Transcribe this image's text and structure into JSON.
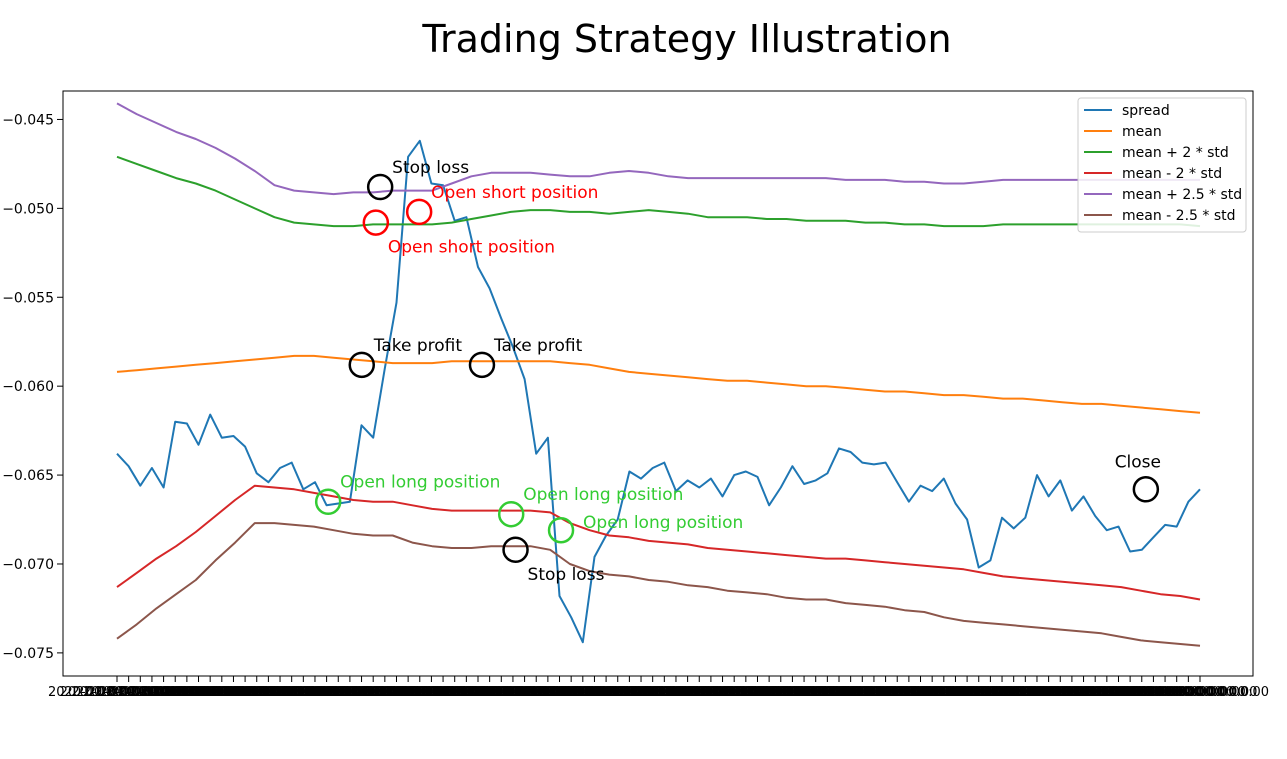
{
  "chart_data": {
    "type": "line",
    "title": "Trading Strategy Illustration",
    "xlabel": "",
    "ylabel": "",
    "ylim": [
      -0.0763,
      -0.0434
    ],
    "y_ticks": [
      -0.045,
      -0.05,
      -0.055,
      -0.06,
      -0.065,
      -0.07,
      -0.075
    ],
    "x_tick_label": "2020-00-00 00:00:00",
    "legend_position": "top-right",
    "grid": false,
    "series": [
      {
        "name": "spread",
        "color": "#1f77b4",
        "values": [
          -0.0638,
          -0.0645,
          -0.0656,
          -0.0646,
          -0.0657,
          -0.062,
          -0.0621,
          -0.0633,
          -0.0616,
          -0.0629,
          -0.0628,
          -0.0634,
          -0.0649,
          -0.0654,
          -0.0646,
          -0.0643,
          -0.0658,
          -0.0654,
          -0.0667,
          -0.0666,
          -0.0665,
          -0.0622,
          -0.0629,
          -0.059,
          -0.0553,
          -0.0471,
          -0.0462,
          -0.0486,
          -0.0487,
          -0.0507,
          -0.0505,
          -0.0533,
          -0.0545,
          -0.0562,
          -0.0578,
          -0.0596,
          -0.0638,
          -0.0629,
          -0.0718,
          -0.073,
          -0.0744,
          -0.0696,
          -0.0684,
          -0.0675,
          -0.0648,
          -0.0652,
          -0.0646,
          -0.0643,
          -0.0659,
          -0.0653,
          -0.0657,
          -0.0652,
          -0.0662,
          -0.065,
          -0.0648,
          -0.0651,
          -0.0667,
          -0.0657,
          -0.0645,
          -0.0655,
          -0.0653,
          -0.0649,
          -0.0635,
          -0.0637,
          -0.0643,
          -0.0644,
          -0.0643,
          -0.0654,
          -0.0665,
          -0.0656,
          -0.0659,
          -0.0652,
          -0.0666,
          -0.0675,
          -0.0702,
          -0.0698,
          -0.0674,
          -0.068,
          -0.0674,
          -0.065,
          -0.0662,
          -0.0653,
          -0.067,
          -0.0662,
          -0.0673,
          -0.0681,
          -0.0679,
          -0.0693,
          -0.0692,
          -0.0685,
          -0.0678,
          -0.0679,
          -0.0665,
          -0.0658
        ]
      },
      {
        "name": "mean",
        "color": "#ff7f0e",
        "values": [
          -0.0592,
          -0.0591,
          -0.059,
          -0.0589,
          -0.0588,
          -0.0587,
          -0.0586,
          -0.0585,
          -0.0584,
          -0.0583,
          -0.0583,
          -0.0584,
          -0.0585,
          -0.0586,
          -0.0587,
          -0.0587,
          -0.0587,
          -0.0586,
          -0.0586,
          -0.0586,
          -0.0586,
          -0.0586,
          -0.0586,
          -0.0587,
          -0.0588,
          -0.059,
          -0.0592,
          -0.0593,
          -0.0594,
          -0.0595,
          -0.0596,
          -0.0597,
          -0.0597,
          -0.0598,
          -0.0599,
          -0.06,
          -0.06,
          -0.0601,
          -0.0602,
          -0.0603,
          -0.0603,
          -0.0604,
          -0.0605,
          -0.0605,
          -0.0606,
          -0.0607,
          -0.0607,
          -0.0608,
          -0.0609,
          -0.061,
          -0.061,
          -0.0611,
          -0.0612,
          -0.0613,
          -0.0614,
          -0.0615
        ]
      },
      {
        "name": "mean + 2 * std",
        "color": "#2ca02c",
        "values": [
          -0.0471,
          -0.0475,
          -0.0479,
          -0.0483,
          -0.0486,
          -0.049,
          -0.0495,
          -0.05,
          -0.0505,
          -0.0508,
          -0.0509,
          -0.051,
          -0.051,
          -0.0509,
          -0.0509,
          -0.0509,
          -0.0509,
          -0.0508,
          -0.0506,
          -0.0504,
          -0.0502,
          -0.0501,
          -0.0501,
          -0.0502,
          -0.0502,
          -0.0503,
          -0.0502,
          -0.0501,
          -0.0502,
          -0.0503,
          -0.0505,
          -0.0505,
          -0.0505,
          -0.0506,
          -0.0506,
          -0.0507,
          -0.0507,
          -0.0507,
          -0.0508,
          -0.0508,
          -0.0509,
          -0.0509,
          -0.051,
          -0.051,
          -0.051,
          -0.0509,
          -0.0509,
          -0.0509,
          -0.0509,
          -0.0509,
          -0.0509,
          -0.0509,
          -0.0509,
          -0.0509,
          -0.0509,
          -0.051
        ]
      },
      {
        "name": "mean - 2 * std",
        "color": "#d62728",
        "values": [
          -0.0713,
          -0.0705,
          -0.0697,
          -0.069,
          -0.0682,
          -0.0673,
          -0.0664,
          -0.0656,
          -0.0657,
          -0.0658,
          -0.066,
          -0.0662,
          -0.0664,
          -0.0665,
          -0.0665,
          -0.0667,
          -0.0669,
          -0.067,
          -0.067,
          -0.067,
          -0.067,
          -0.067,
          -0.0671,
          -0.0677,
          -0.0681,
          -0.0684,
          -0.0685,
          -0.0687,
          -0.0688,
          -0.0689,
          -0.0691,
          -0.0692,
          -0.0693,
          -0.0694,
          -0.0695,
          -0.0696,
          -0.0697,
          -0.0697,
          -0.0698,
          -0.0699,
          -0.07,
          -0.0701,
          -0.0702,
          -0.0703,
          -0.0705,
          -0.0707,
          -0.0708,
          -0.0709,
          -0.071,
          -0.0711,
          -0.0712,
          -0.0713,
          -0.0715,
          -0.0717,
          -0.0718,
          -0.072
        ]
      },
      {
        "name": "mean + 2.5 * std",
        "color": "#9467bd",
        "values": [
          -0.0441,
          -0.0447,
          -0.0452,
          -0.0457,
          -0.0461,
          -0.0466,
          -0.0472,
          -0.0479,
          -0.0487,
          -0.049,
          -0.0491,
          -0.0492,
          -0.0491,
          -0.0491,
          -0.049,
          -0.049,
          -0.049,
          -0.0486,
          -0.0482,
          -0.048,
          -0.048,
          -0.048,
          -0.0481,
          -0.0482,
          -0.0482,
          -0.048,
          -0.0479,
          -0.048,
          -0.0482,
          -0.0483,
          -0.0483,
          -0.0483,
          -0.0483,
          -0.0483,
          -0.0483,
          -0.0483,
          -0.0483,
          -0.0484,
          -0.0484,
          -0.0484,
          -0.0485,
          -0.0485,
          -0.0486,
          -0.0486,
          -0.0485,
          -0.0484,
          -0.0484,
          -0.0484,
          -0.0484,
          -0.0484,
          -0.0484,
          -0.0484,
          -0.0484,
          -0.0484,
          -0.0484,
          -0.0484
        ]
      },
      {
        "name": "mean - 2.5 * std",
        "color": "#8c564b",
        "values": [
          -0.0742,
          -0.0734,
          -0.0725,
          -0.0717,
          -0.0709,
          -0.0698,
          -0.0688,
          -0.0677,
          -0.0677,
          -0.0678,
          -0.0679,
          -0.0681,
          -0.0683,
          -0.0684,
          -0.0684,
          -0.0688,
          -0.069,
          -0.0691,
          -0.0691,
          -0.069,
          -0.069,
          -0.069,
          -0.0692,
          -0.07,
          -0.0704,
          -0.0706,
          -0.0707,
          -0.0709,
          -0.071,
          -0.0712,
          -0.0713,
          -0.0715,
          -0.0716,
          -0.0717,
          -0.0719,
          -0.072,
          -0.072,
          -0.0722,
          -0.0723,
          -0.0724,
          -0.0726,
          -0.0727,
          -0.073,
          -0.0732,
          -0.0733,
          -0.0734,
          -0.0735,
          -0.0736,
          -0.0737,
          -0.0738,
          -0.0739,
          -0.0741,
          -0.0743,
          -0.0744,
          -0.0745,
          -0.0746
        ]
      }
    ],
    "markers": [
      {
        "label": "Stop loss",
        "color": "#000000",
        "x": 0.243,
        "y": -0.0488,
        "label_side": "above-right"
      },
      {
        "label": "Open short position",
        "color": "#ff0000",
        "x": 0.239,
        "y": -0.0508,
        "label_side": "below-right"
      },
      {
        "label": "Open short position",
        "color": "#ff0000",
        "x": 0.279,
        "y": -0.0502,
        "label_side": "above-right"
      },
      {
        "label": "Take profit",
        "color": "#000000",
        "x": 0.226,
        "y": -0.0588,
        "label_side": "above-right"
      },
      {
        "label": "Take profit",
        "color": "#000000",
        "x": 0.337,
        "y": -0.0588,
        "label_side": "above-right"
      },
      {
        "label": "Open long position",
        "color": "#33cc33",
        "x": 0.195,
        "y": -0.0665,
        "label_side": "above-right"
      },
      {
        "label": "Open long position",
        "color": "#33cc33",
        "x": 0.364,
        "y": -0.0672,
        "label_side": "above-right"
      },
      {
        "label": "Open long position",
        "color": "#33cc33",
        "x": 0.41,
        "y": -0.0681,
        "label_side": "right"
      },
      {
        "label": "Stop loss",
        "color": "#000000",
        "x": 0.368,
        "y": -0.0692,
        "label_side": "below-right"
      },
      {
        "label": "Close",
        "color": "#000000",
        "x": 0.95,
        "y": -0.0658,
        "label_side": "above"
      }
    ]
  }
}
